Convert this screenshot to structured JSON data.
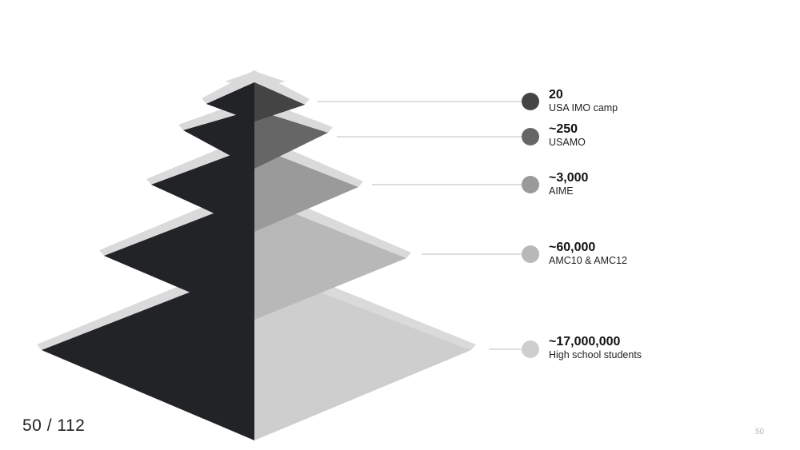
{
  "pyramid": {
    "tiers": [
      {
        "count": "20",
        "label": "USA IMO camp",
        "color": "#444444"
      },
      {
        "count": "~250",
        "label": "USAMO",
        "color": "#666666"
      },
      {
        "count": "~3,000",
        "label": "AIME",
        "color": "#9a9a9a"
      },
      {
        "count": "~60,000",
        "label": "AMC10 & AMC12",
        "color": "#b8b8b8"
      },
      {
        "count": "~17,000,000",
        "label": "High school students",
        "color": "#cecece"
      }
    ],
    "dark_face_color": "#222326",
    "top_face_color": "#dadada",
    "leader_line_color": "#bdbdbd"
  },
  "footer": {
    "page_counter": "50 / 112",
    "slide_number": "50"
  }
}
